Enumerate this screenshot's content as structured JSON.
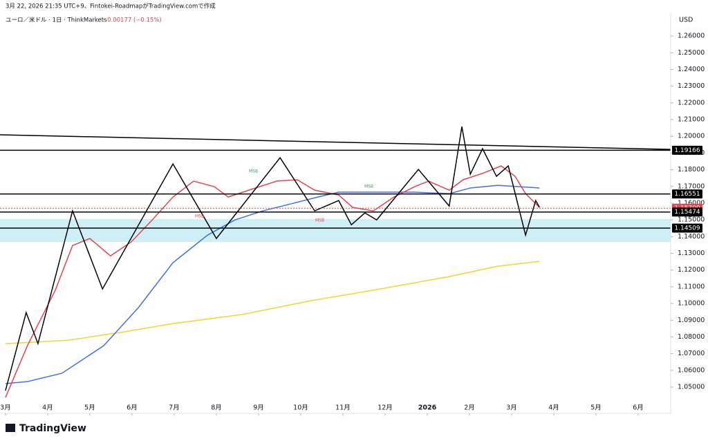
{
  "header": {
    "credit": "3月 22, 2026 21:35 UTC+9、Fintokei-RoadmapがTradingView.comで作成",
    "symbol": "ユーロ／米ドル · 1日 · ThinkMarkets",
    "change": "−0.00177 (−0.15%)"
  },
  "footer": {
    "logo": "TradingView"
  },
  "annotations": [
    "MSB",
    "MSB",
    "MSB",
    "MSB"
  ],
  "chart_data": {
    "type": "line",
    "y_axis_label": "USD",
    "grid": false,
    "xlim": [
      -0.13,
      15.77
    ],
    "ylim": [
      1.0343,
      1.2741
    ],
    "xticks": [
      {
        "value": 0,
        "label": "3月"
      },
      {
        "value": 1,
        "label": "4月"
      },
      {
        "value": 2,
        "label": "5月"
      },
      {
        "value": 3,
        "label": "6月"
      },
      {
        "value": 4,
        "label": "7月"
      },
      {
        "value": 5,
        "label": "8月"
      },
      {
        "value": 6,
        "label": "9月"
      },
      {
        "value": 7,
        "label": "10月"
      },
      {
        "value": 8,
        "label": "11月"
      },
      {
        "value": 9,
        "label": "12月"
      },
      {
        "value": 10,
        "label": "2026"
      },
      {
        "value": 11,
        "label": "2月"
      },
      {
        "value": 12,
        "label": "3月"
      },
      {
        "value": 13,
        "label": "4月"
      },
      {
        "value": 14,
        "label": "5月"
      },
      {
        "value": 15,
        "label": "6月"
      }
    ],
    "yticks": [
      {
        "value": 1.05,
        "label": "1.05000"
      },
      {
        "value": 1.06,
        "label": "1.06000"
      },
      {
        "value": 1.07,
        "label": "1.07000"
      },
      {
        "value": 1.08,
        "label": "1.08000"
      },
      {
        "value": 1.09,
        "label": "1.09000"
      },
      {
        "value": 1.1,
        "label": "1.10000"
      },
      {
        "value": 1.11,
        "label": "1.11000"
      },
      {
        "value": 1.12,
        "label": "1.12000"
      },
      {
        "value": 1.13,
        "label": "1.13000"
      },
      {
        "value": 1.14,
        "label": "1.14000"
      },
      {
        "value": 1.15,
        "label": "1.15000"
      },
      {
        "value": 1.16,
        "label": "1.16000"
      },
      {
        "value": 1.17,
        "label": "1.17000"
      },
      {
        "value": 1.18,
        "label": "1.18000"
      },
      {
        "value": 1.19,
        "label": "1.19000"
      },
      {
        "value": 1.2,
        "label": "1.20000"
      },
      {
        "value": 1.21,
        "label": "1.21000"
      },
      {
        "value": 1.22,
        "label": "1.22000"
      },
      {
        "value": 1.23,
        "label": "1.23000"
      },
      {
        "value": 1.24,
        "label": "1.24000"
      },
      {
        "value": 1.25,
        "label": "1.25000"
      },
      {
        "value": 1.26,
        "label": "1.26000"
      }
    ],
    "zone": {
      "values": [
        1.1368,
        1.1505
      ],
      "color": "#cdeff5"
    },
    "levels": [
      {
        "value": 1.19166,
        "label": "1.19166",
        "color": "#000000"
      },
      {
        "value": 1.16551,
        "label": "1.16551",
        "color": "#000000"
      },
      {
        "value": 1.157,
        "label": "1.15700",
        "color": "#e5434f"
      },
      {
        "value": 1.15474,
        "label": "1.15474",
        "color": "#000000"
      },
      {
        "value": 1.14509,
        "label": "1.14509",
        "color": "#000000"
      }
    ],
    "series": [
      {
        "color": "#f5d32b",
        "x": [
          0,
          0.69,
          1.51,
          2.82,
          3.97,
          5.61,
          7.25,
          8.89,
          10.52,
          11.67,
          12.66
        ],
        "values": [
          1.076,
          1.0769,
          1.0781,
          1.0831,
          1.088,
          1.0934,
          1.1017,
          1.1087,
          1.1161,
          1.1223,
          1.1252
        ]
      },
      {
        "color": "#3d6fe8",
        "x": [
          0,
          0.52,
          1.34,
          2.33,
          3.15,
          3.97,
          4.79,
          5.44,
          6.1,
          6.75,
          7.41,
          7.9,
          8.72,
          9.7,
          10.52,
          11.02,
          11.67,
          12.66
        ],
        "values": [
          1.0521,
          1.0533,
          1.0583,
          1.0748,
          1.0975,
          1.1244,
          1.1409,
          1.15,
          1.1554,
          1.1595,
          1.1637,
          1.1666,
          1.1666,
          1.1666,
          1.1657,
          1.1691,
          1.1707,
          1.1691
        ]
      },
      {
        "color": "#e5434f",
        "x": [
          0,
          0.52,
          1.18,
          1.59,
          2,
          2.49,
          2.98,
          3.48,
          3.97,
          4.46,
          4.95,
          5.28,
          5.77,
          6.43,
          6.92,
          7.33,
          7.9,
          8.23,
          8.72,
          9.21,
          9.7,
          10.03,
          10.52,
          10.85,
          11.34,
          11.75,
          12.08,
          12.33,
          12.66
        ],
        "values": [
          1.0438,
          1.0748,
          1.1079,
          1.1347,
          1.1389,
          1.1285,
          1.1368,
          1.15,
          1.1637,
          1.1732,
          1.1699,
          1.1637,
          1.1678,
          1.1732,
          1.174,
          1.1678,
          1.1649,
          1.1575,
          1.1554,
          1.1637,
          1.1699,
          1.1732,
          1.1678,
          1.174,
          1.1781,
          1.1823,
          1.1761,
          1.1657,
          1.1575
        ]
      },
      {
        "color": "#000000",
        "x": [
          -0.13,
          15.77
        ],
        "values": [
          1.2009,
          1.1922
        ]
      },
      {
        "color": "#000000",
        "x": [
          0,
          0.49,
          0.77,
          1.59,
          2.3,
          3.97,
          5,
          6.51,
          7.33,
          7.9,
          8.2,
          8.52,
          8.8,
          9.79,
          10.52,
          10.82,
          11.02,
          11.31,
          11.64,
          11.92,
          12.33,
          12.57,
          12.66
        ],
        "values": [
          1.0479,
          1.0946,
          1.076,
          1.1554,
          1.1087,
          1.1835,
          1.1389,
          1.1872,
          1.1554,
          1.1616,
          1.1471,
          1.1542,
          1.15,
          1.1802,
          1.1583,
          1.2058,
          1.1773,
          1.1926,
          1.1761,
          1.1823,
          1.1409,
          1.1616,
          1.1575
        ]
      }
    ]
  }
}
